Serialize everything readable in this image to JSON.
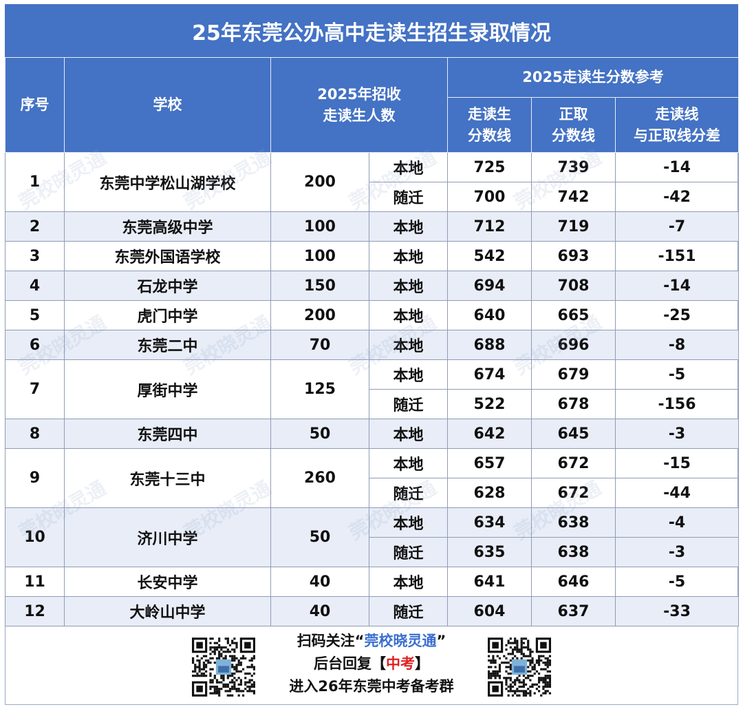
{
  "title": "25年东莞公办高中走读生招生录取情况",
  "headers": {
    "index": "序号",
    "school": "学校",
    "quota_line1": "2025年招收",
    "quota_line2": "走读生人数",
    "group": "2025走读生分数参考",
    "walk_line1": "走读生",
    "walk_line2": "分数线",
    "reg_line1": "正取",
    "reg_line2": "分数线",
    "diff_line1": "走读线",
    "diff_line2": "与正取线分差"
  },
  "rows": [
    {
      "idx": "1",
      "school": "东莞中学松山湖学校",
      "quota": "200",
      "sub": [
        {
          "type": "本地",
          "walk": "725",
          "reg": "739",
          "diff": "-14"
        },
        {
          "type": "随迁",
          "walk": "700",
          "reg": "742",
          "diff": "-42"
        }
      ]
    },
    {
      "idx": "2",
      "school": "东莞高级中学",
      "quota": "100",
      "sub": [
        {
          "type": "本地",
          "walk": "712",
          "reg": "719",
          "diff": "-7"
        }
      ]
    },
    {
      "idx": "3",
      "school": "东莞外国语学校",
      "quota": "100",
      "sub": [
        {
          "type": "本地",
          "walk": "542",
          "reg": "693",
          "diff": "-151"
        }
      ]
    },
    {
      "idx": "4",
      "school": "石龙中学",
      "quota": "150",
      "sub": [
        {
          "type": "本地",
          "walk": "694",
          "reg": "708",
          "diff": "-14"
        }
      ]
    },
    {
      "idx": "5",
      "school": "虎门中学",
      "quota": "200",
      "sub": [
        {
          "type": "本地",
          "walk": "640",
          "reg": "665",
          "diff": "-25"
        }
      ]
    },
    {
      "idx": "6",
      "school": "东莞二中",
      "quota": "70",
      "sub": [
        {
          "type": "本地",
          "walk": "688",
          "reg": "696",
          "diff": "-8"
        }
      ]
    },
    {
      "idx": "7",
      "school": "厚街中学",
      "quota": "125",
      "sub": [
        {
          "type": "本地",
          "walk": "674",
          "reg": "679",
          "diff": "-5"
        },
        {
          "type": "随迁",
          "walk": "522",
          "reg": "678",
          "diff": "-156"
        }
      ]
    },
    {
      "idx": "8",
      "school": "东莞四中",
      "quota": "50",
      "sub": [
        {
          "type": "本地",
          "walk": "642",
          "reg": "645",
          "diff": "-3"
        }
      ]
    },
    {
      "idx": "9",
      "school": "东莞十三中",
      "quota": "260",
      "sub": [
        {
          "type": "本地",
          "walk": "657",
          "reg": "672",
          "diff": "-15"
        },
        {
          "type": "随迁",
          "walk": "628",
          "reg": "672",
          "diff": "-44"
        }
      ]
    },
    {
      "idx": "10",
      "school": "济川中学",
      "quota": "50",
      "sub": [
        {
          "type": "本地",
          "walk": "634",
          "reg": "638",
          "diff": "-4"
        },
        {
          "type": "随迁",
          "walk": "635",
          "reg": "638",
          "diff": "-3"
        }
      ]
    },
    {
      "idx": "11",
      "school": "长安中学",
      "quota": "40",
      "sub": [
        {
          "type": "本地",
          "walk": "641",
          "reg": "646",
          "diff": "-5"
        }
      ]
    },
    {
      "idx": "12",
      "school": "大岭山中学",
      "quota": "40",
      "sub": [
        {
          "type": "随迁",
          "walk": "604",
          "reg": "637",
          "diff": "-33"
        }
      ]
    }
  ],
  "footer": {
    "line1_prefix": "扫码关注“",
    "line1_name": "莞校晓灵通",
    "line1_suffix": "”",
    "line2_prefix": "后台回复【",
    "line2_keyword": "中考",
    "line2_suffix": "】",
    "line3": "进入26年东莞中考备考群"
  },
  "watermark": "莞校晓灵通",
  "colors": {
    "header_blue": "#4472c4",
    "alt_row": "#e8edf7",
    "diff_red": "#e02020",
    "link_blue": "#3a6fd0"
  }
}
